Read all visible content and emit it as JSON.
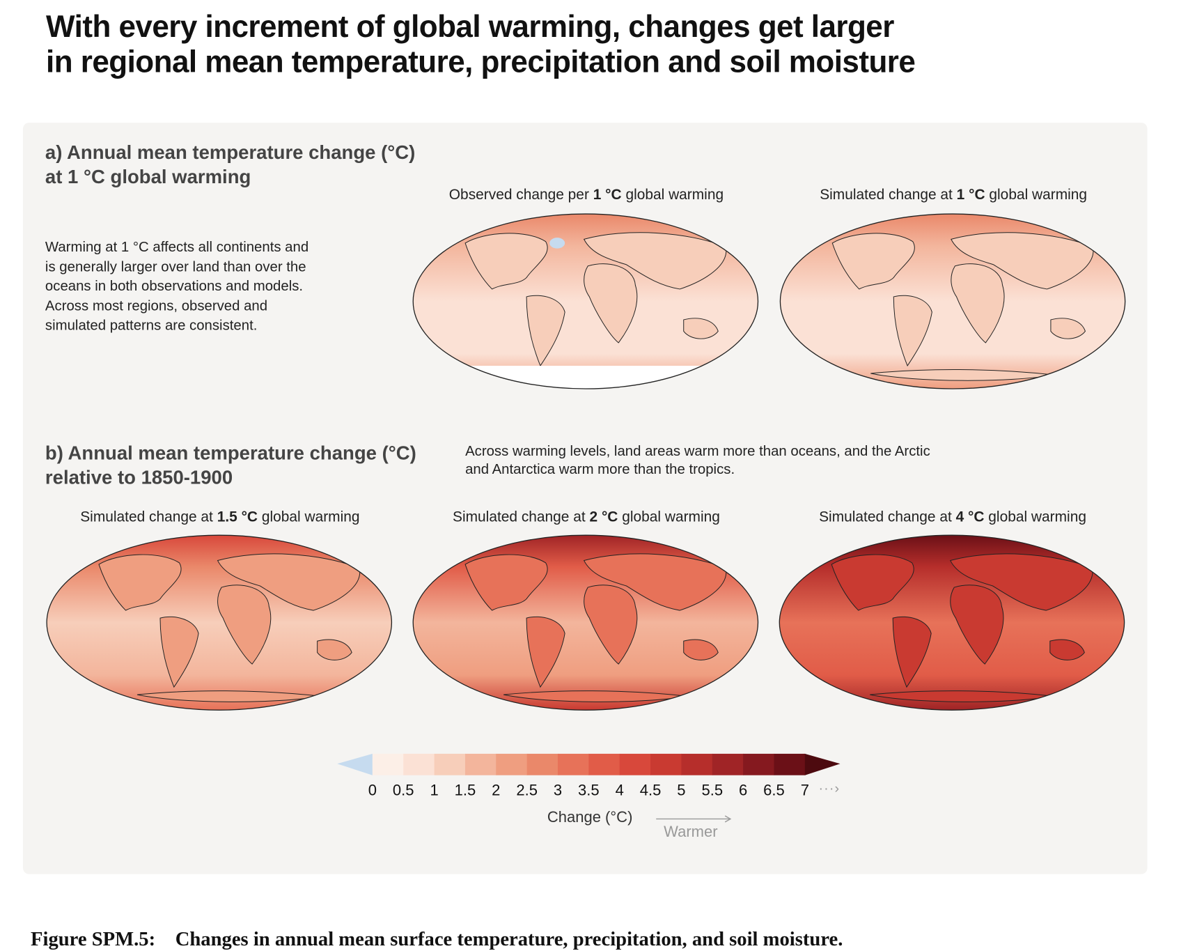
{
  "title": [
    "With every increment of global warming, changes get larger",
    "in regional mean temperature, precipitation and soil moisture"
  ],
  "section_a": {
    "heading": [
      "a) Annual mean temperature change (°C)",
      "at 1 °C global warming"
    ],
    "text": [
      "Warming at 1 °C affects all continents and",
      "is generally larger over land than over the",
      "oceans in both observations and models.",
      "Across most regions, observed and",
      "simulated patterns are consistent."
    ],
    "maps": [
      {
        "pre": "Observed change per ",
        "bold": "1 °C",
        "post": " global warming"
      },
      {
        "pre": "Simulated change at ",
        "bold": "1 °C",
        "post": " global warming"
      }
    ]
  },
  "section_b": {
    "heading": [
      "b) Annual mean temperature change (°C)",
      "relative to 1850-1900"
    ],
    "text": [
      "Across warming levels, land areas warm more than oceans, and the Arctic",
      "and Antarctica warm more than the tropics."
    ],
    "maps": [
      {
        "pre": "Simulated change at ",
        "bold": "1.5 °C",
        "post": " global warming"
      },
      {
        "pre": "Simulated change at ",
        "bold": "2 °C",
        "post": " global warming"
      },
      {
        "pre": "Simulated change at ",
        "bold": "4 °C",
        "post": " global warming"
      }
    ]
  },
  "chart_data": {
    "type": "heatmap",
    "title": "Annual mean temperature change (°C)",
    "colorbar": {
      "label": "Change (°C)",
      "direction_label": "Warmer",
      "ticks": [
        "0",
        "0.5",
        "1",
        "1.5",
        "2",
        "2.5",
        "3",
        "3.5",
        "4",
        "4.5",
        "5",
        "5.5",
        "6",
        "6.5",
        "7"
      ],
      "range": [
        0,
        7
      ],
      "extend": "both",
      "colors": [
        "#fcefe7",
        "#fbe1d5",
        "#f7ceba",
        "#f3b59c",
        "#ef9e80",
        "#ea886a",
        "#e77259",
        "#e15c48",
        "#d8483b",
        "#c93a31",
        "#b62e2b",
        "#a02426",
        "#85191f",
        "#6b1017"
      ],
      "under_color": "#c6dbef",
      "over_color": "#4d0a0f"
    },
    "panels": [
      {
        "name": "Observed change per 1 °C global warming",
        "warming_level": 1,
        "typical_range": [
          0.5,
          2.5
        ]
      },
      {
        "name": "Simulated change at 1 °C global warming",
        "warming_level": 1,
        "typical_range": [
          0.5,
          2.5
        ]
      },
      {
        "name": "Simulated change at 1.5 °C global warming",
        "warming_level": 1.5,
        "typical_range": [
          1,
          4
        ]
      },
      {
        "name": "Simulated change at 2 °C global warming",
        "warming_level": 2,
        "typical_range": [
          1.5,
          5.5
        ]
      },
      {
        "name": "Simulated change at 4 °C global warming",
        "warming_level": 4,
        "typical_range": [
          3,
          7
        ]
      }
    ]
  },
  "caption": {
    "label": "Figure SPM.5:",
    "text": "Changes in annual mean surface temperature, precipitation, and soil moisture."
  }
}
